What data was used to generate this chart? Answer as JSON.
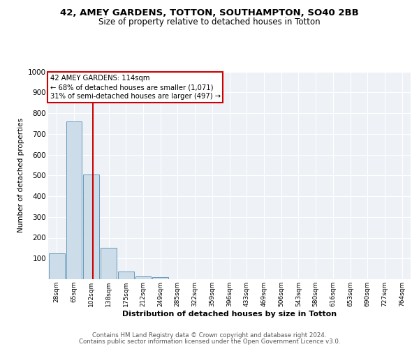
{
  "title1": "42, AMEY GARDENS, TOTTON, SOUTHAMPTON, SO40 2BB",
  "title2": "Size of property relative to detached houses in Totton",
  "xlabel": "Distribution of detached houses by size in Totton",
  "ylabel": "Number of detached properties",
  "bar_labels": [
    "28sqm",
    "65sqm",
    "102sqm",
    "138sqm",
    "175sqm",
    "212sqm",
    "249sqm",
    "285sqm",
    "322sqm",
    "359sqm",
    "396sqm",
    "433sqm",
    "469sqm",
    "506sqm",
    "543sqm",
    "580sqm",
    "616sqm",
    "653sqm",
    "690sqm",
    "727sqm",
    "764sqm"
  ],
  "bar_heights": [
    125,
    760,
    505,
    150,
    37,
    13,
    10,
    0,
    0,
    0,
    0,
    0,
    0,
    0,
    0,
    0,
    0,
    0,
    0,
    0,
    0
  ],
  "bar_color": "#ccdce8",
  "bar_edge_color": "#6699bb",
  "bar_width": 0.92,
  "ylim": [
    0,
    1000
  ],
  "yticks": [
    0,
    100,
    200,
    300,
    400,
    500,
    600,
    700,
    800,
    900,
    1000
  ],
  "red_line_x": 2.07,
  "red_color": "#cc0000",
  "annotation_lines": [
    "42 AMEY GARDENS: 114sqm",
    "← 68% of detached houses are smaller (1,071)",
    "31% of semi-detached houses are larger (497) →"
  ],
  "bg_color": "#eef2f7",
  "grid_color": "#ffffff",
  "footer1": "Contains HM Land Registry data © Crown copyright and database right 2024.",
  "footer2": "Contains public sector information licensed under the Open Government Licence v3.0."
}
